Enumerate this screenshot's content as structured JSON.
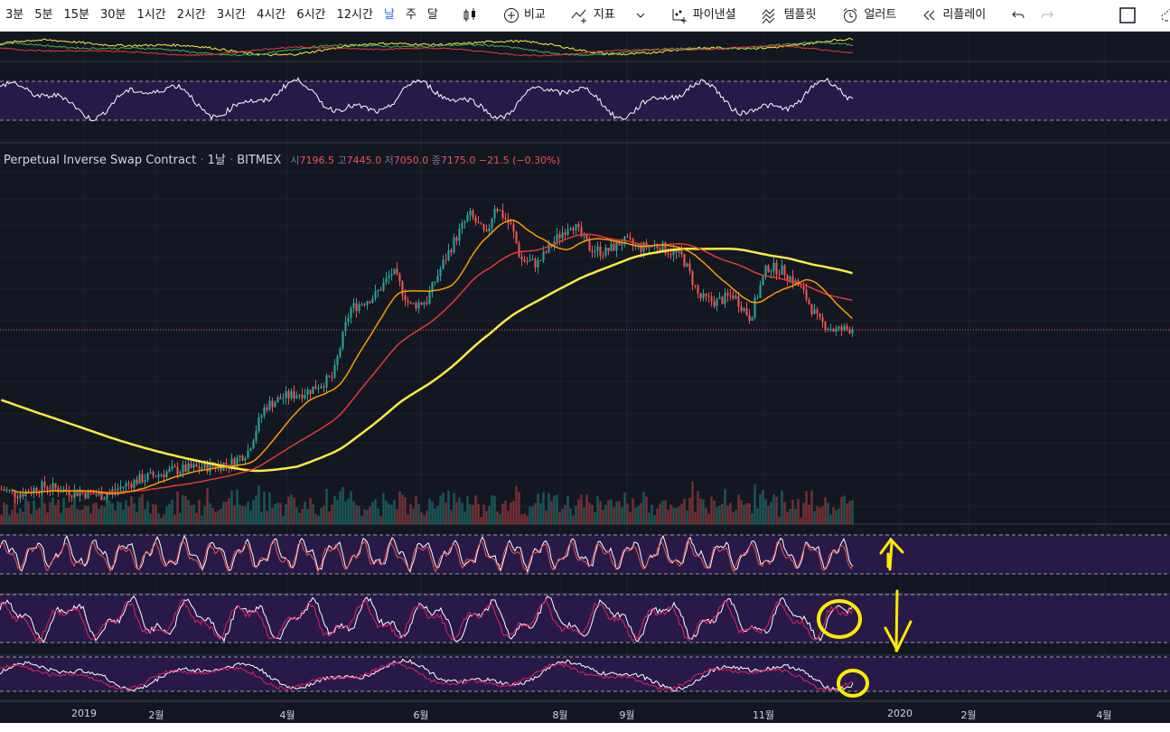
{
  "toolbar": {
    "intervals": [
      "3분",
      "5분",
      "15분",
      "30분",
      "1시간",
      "2시간",
      "3시간",
      "4시간",
      "6시간",
      "12시간",
      "날",
      "주",
      "달"
    ],
    "active_interval": "날",
    "compare_label": "비교",
    "indicators_label": "지표",
    "pine_label": "파이낸셜",
    "templates_label": "템플릿",
    "alert_label": "얼러트",
    "replay_label": "리플레이"
  },
  "legend": {
    "symbol": "Perpetual Inverse Swap Contract",
    "interval": "1날",
    "exchange": "BITMEX",
    "o_label": "시",
    "o": "7196.5",
    "h_label": "고",
    "h": "7445.0",
    "l_label": "저",
    "l": "7050.0",
    "c_label": "종",
    "c": "7175.0",
    "change": "−21.5 (−0.30%)"
  },
  "chart_data": {
    "type": "candlestick",
    "x_ticks": [
      "2019",
      "2월",
      "4월",
      "6월",
      "8월",
      "9월",
      "11월",
      "2020",
      "2월",
      "4월"
    ],
    "price_path": [
      [
        0,
        3550
      ],
      [
        0.02,
        3480
      ],
      [
        0.05,
        3600
      ],
      [
        0.08,
        3520
      ],
      [
        0.12,
        3460
      ],
      [
        0.16,
        3700
      ],
      [
        0.2,
        3850
      ],
      [
        0.24,
        3920
      ],
      [
        0.27,
        3980
      ],
      [
        0.29,
        4200
      ],
      [
        0.31,
        5100
      ],
      [
        0.33,
        5300
      ],
      [
        0.36,
        5450
      ],
      [
        0.39,
        5800
      ],
      [
        0.41,
        7800
      ],
      [
        0.44,
        8300
      ],
      [
        0.46,
        9200
      ],
      [
        0.48,
        7900
      ],
      [
        0.5,
        8100
      ],
      [
        0.52,
        9600
      ],
      [
        0.55,
        11800
      ],
      [
        0.57,
        10700
      ],
      [
        0.58,
        12300
      ],
      [
        0.6,
        11100
      ],
      [
        0.61,
        9700
      ],
      [
        0.63,
        9500
      ],
      [
        0.65,
        10500
      ],
      [
        0.67,
        11400
      ],
      [
        0.69,
        10200
      ],
      [
        0.71,
        10000
      ],
      [
        0.73,
        10500
      ],
      [
        0.75,
        10200
      ],
      [
        0.77,
        10300
      ],
      [
        0.8,
        9800
      ],
      [
        0.82,
        8200
      ],
      [
        0.84,
        8050
      ],
      [
        0.86,
        8300
      ],
      [
        0.88,
        7500
      ],
      [
        0.9,
        9400
      ],
      [
        0.92,
        9200
      ],
      [
        0.94,
        8500
      ],
      [
        0.96,
        7400
      ],
      [
        0.98,
        7100
      ],
      [
        1,
        7175
      ]
    ],
    "overlay_colors": {
      "ma_fast": "#ff9800",
      "ma_mid": "#e53935",
      "ma_slow": "#ffeb3b"
    },
    "annotations": [
      "up-arrow",
      "down-arrow",
      "circle",
      "circle"
    ]
  },
  "colors": {
    "background": "#131722",
    "up": "#26a69a",
    "down": "#ef5350",
    "panel": "#2d1b4f",
    "annotation": "#ffeb00",
    "accent": "#2962ff"
  }
}
